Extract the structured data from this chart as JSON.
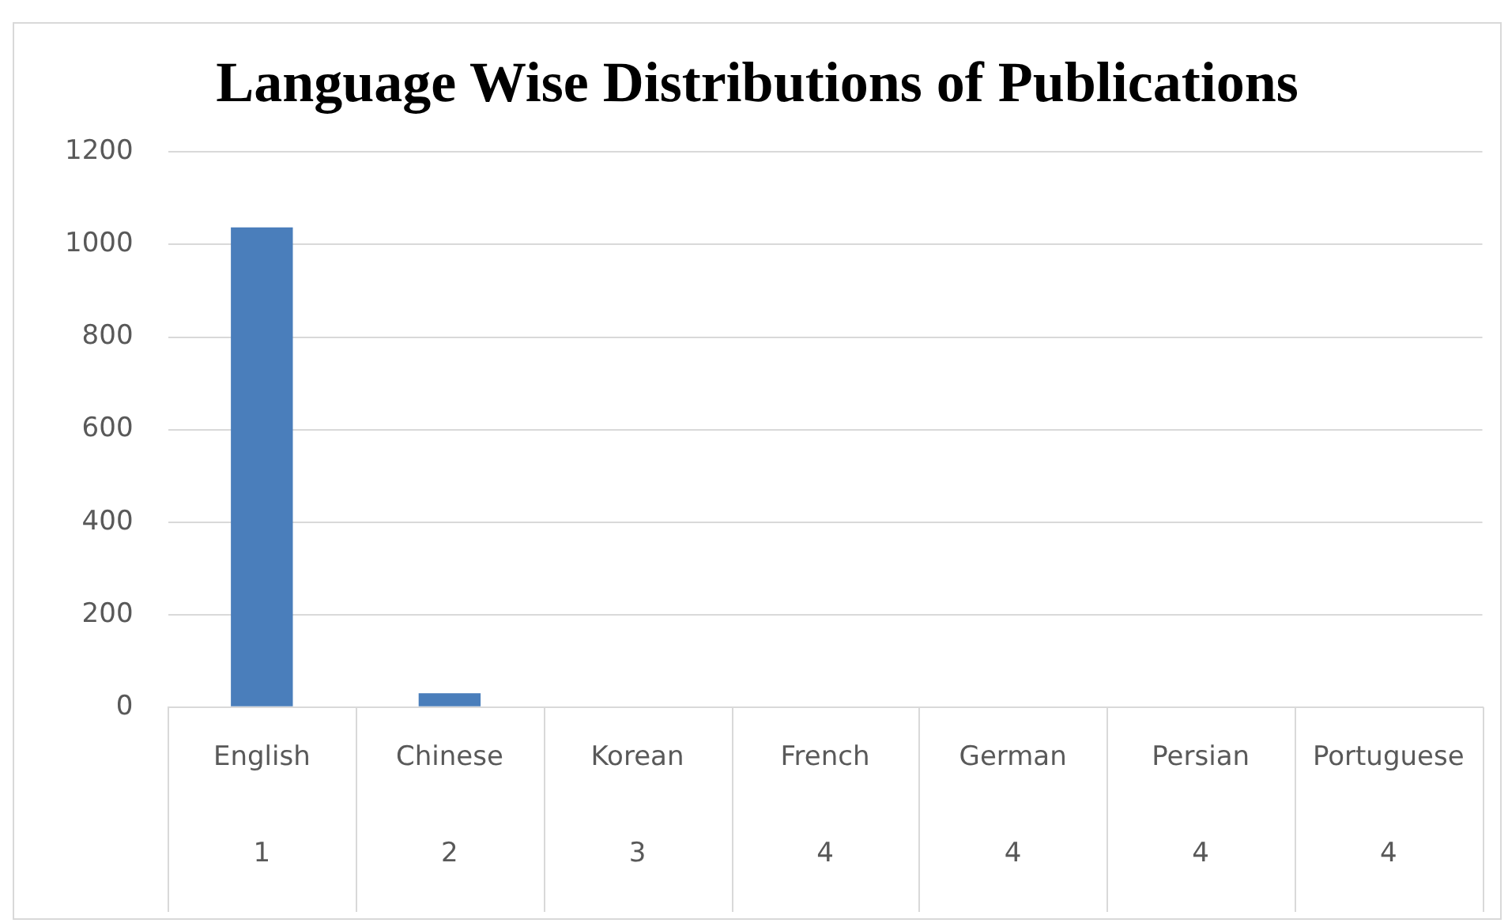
{
  "chart_data": {
    "type": "bar",
    "title": "Language Wise Distributions of Publications",
    "categories": [
      "English\n1",
      "Chinese\n2",
      "Korean\n3",
      "French\n4",
      "German\n4",
      "Persian\n4",
      "Portuguese\n4"
    ],
    "values": [
      1037,
      30,
      0,
      0,
      0,
      0,
      0
    ],
    "color": "#4a7ebb",
    "ylim": [
      0,
      1200
    ],
    "yticks": [
      0,
      200,
      400,
      600,
      800,
      1000,
      1200
    ],
    "grid": "y",
    "legend": false
  }
}
